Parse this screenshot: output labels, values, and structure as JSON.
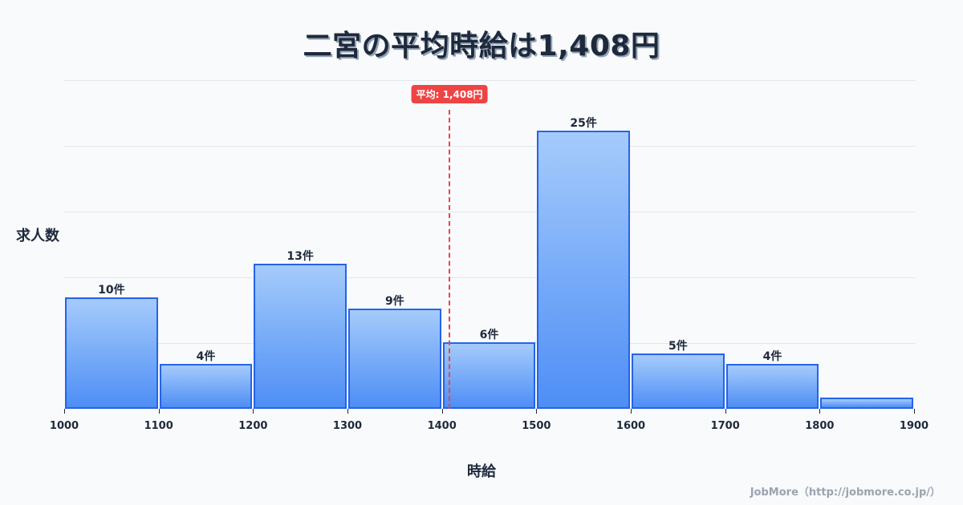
{
  "title": "二宮の平均時給は1,408円",
  "footer": "JobMore（http://jobmore.co.jp/）",
  "colors": {
    "background": "#f8fafc",
    "bar_top": "#a5cbfb",
    "bar_bottom": "#4e8ef5",
    "bar_border": "#2563eb",
    "mean_line": "#ef4444",
    "text": "#1e293b",
    "grid": "#e2e8f0"
  },
  "chart_data": {
    "type": "bar",
    "title": "二宮の平均時給は1,408円",
    "xlabel": "時給",
    "ylabel": "求人数",
    "bins": [
      {
        "from": 1000,
        "to": 1100,
        "count": 10,
        "label": "10件"
      },
      {
        "from": 1100,
        "to": 1200,
        "count": 4,
        "label": "4件"
      },
      {
        "from": 1200,
        "to": 1300,
        "count": 13,
        "label": "13件"
      },
      {
        "from": 1300,
        "to": 1400,
        "count": 9,
        "label": "9件"
      },
      {
        "from": 1400,
        "to": 1500,
        "count": 6,
        "label": "6件"
      },
      {
        "from": 1500,
        "to": 1600,
        "count": 25,
        "label": "25件"
      },
      {
        "from": 1600,
        "to": 1700,
        "count": 5,
        "label": "5件"
      },
      {
        "from": 1700,
        "to": 1800,
        "count": 4,
        "label": "4件"
      },
      {
        "from": 1800,
        "to": 1900,
        "count": 1,
        "label": ""
      }
    ],
    "categories": [
      "1000-1100",
      "1100-1200",
      "1200-1300",
      "1300-1400",
      "1400-1500",
      "1500-1600",
      "1600-1700",
      "1700-1800",
      "1800-1900"
    ],
    "values": [
      10,
      4,
      13,
      9,
      6,
      25,
      5,
      4,
      1
    ],
    "x_ticks": [
      "1000",
      "1100",
      "1200",
      "1300",
      "1400",
      "1500",
      "1600",
      "1700",
      "1800",
      "1900"
    ],
    "xlim": [
      1000,
      1900
    ],
    "ylim": [
      0,
      29.5
    ],
    "grid": true,
    "mean": {
      "value": 1408,
      "label": "平均: 1,408円"
    }
  }
}
